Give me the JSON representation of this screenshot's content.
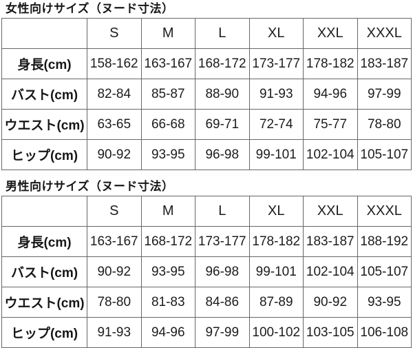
{
  "colors": {
    "background": "#ffffff",
    "border": "#666666",
    "text": "#1c1c1c"
  },
  "tables": [
    {
      "title": "女性向けサイズ（ヌード寸法）",
      "corner_label": "",
      "headers": [
        "S",
        "M",
        "L",
        "XL",
        "XXL",
        "XXXL"
      ],
      "rows": [
        {
          "label": "身長(cm)",
          "values": [
            "158-162",
            "163-167",
            "168-172",
            "173-177",
            "178-182",
            "183-187"
          ]
        },
        {
          "label": "バスト(cm)",
          "values": [
            "82-84",
            "85-87",
            "88-90",
            "91-93",
            "94-96",
            "97-99"
          ]
        },
        {
          "label": "ウエスト(cm)",
          "values": [
            "63-65",
            "66-68",
            "69-71",
            "72-74",
            "75-77",
            "78-80"
          ]
        },
        {
          "label": "ヒップ(cm)",
          "values": [
            "90-92",
            "93-95",
            "96-98",
            "99-101",
            "102-104",
            "105-107"
          ]
        }
      ]
    },
    {
      "title": "男性向けサイズ（ヌード寸法）",
      "corner_label": "",
      "headers": [
        "S",
        "M",
        "L",
        "XL",
        "XXL",
        "XXXL"
      ],
      "rows": [
        {
          "label": "身長(cm)",
          "values": [
            "163-167",
            "168-172",
            "173-177",
            "178-182",
            "183-187",
            "188-192"
          ]
        },
        {
          "label": "バスト(cm)",
          "values": [
            "90-92",
            "93-95",
            "96-98",
            "99-101",
            "102-104",
            "105-107"
          ]
        },
        {
          "label": "ウエスト(cm)",
          "values": [
            "78-80",
            "81-83",
            "84-86",
            "87-89",
            "90-92",
            "93-95"
          ]
        },
        {
          "label": "ヒップ(cm)",
          "values": [
            "91-93",
            "94-96",
            "97-99",
            "100-102",
            "103-105",
            "106-108"
          ]
        }
      ]
    }
  ]
}
